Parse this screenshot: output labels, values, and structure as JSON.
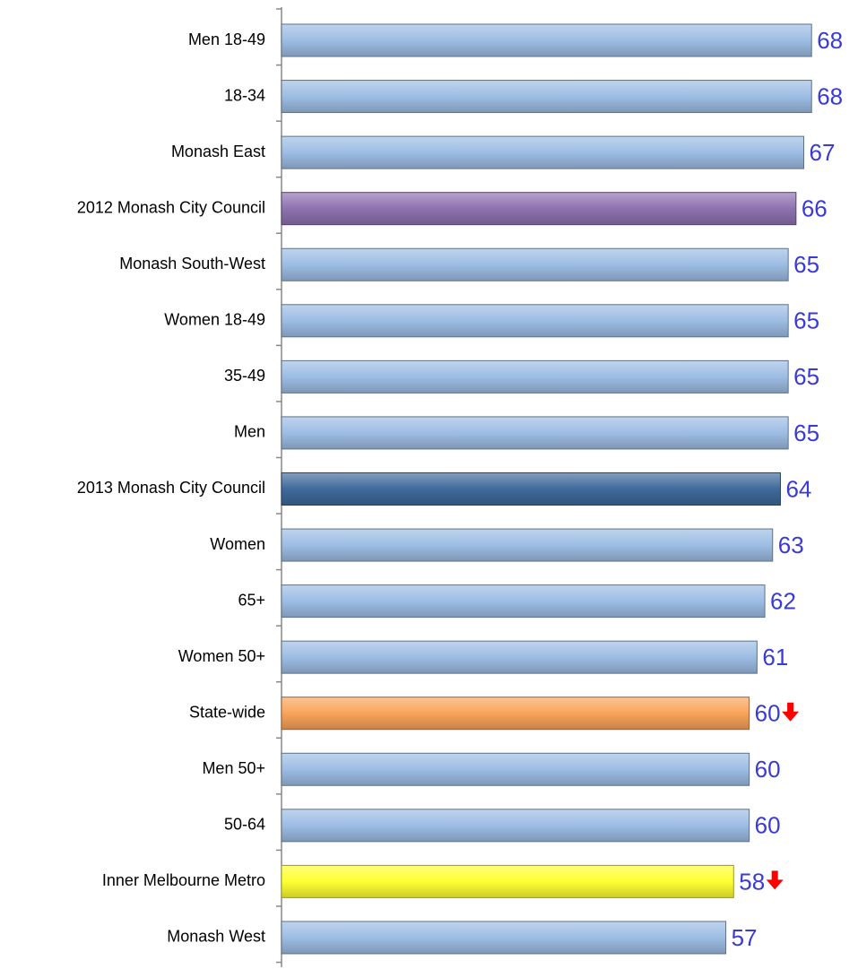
{
  "chart_data": {
    "type": "bar",
    "orientation": "horizontal",
    "categories": [
      "Men 18-49",
      "18-34",
      "Monash East",
      "2012 Monash City Council",
      "Monash South-West",
      "Women 18-49",
      "35-49",
      "Men",
      "2013 Monash City Council",
      "Women",
      "65+",
      "Women 50+",
      "State-wide",
      "Men 50+",
      "50-64",
      "Inner Melbourne Metro",
      "Monash West"
    ],
    "values": [
      68,
      68,
      67,
      66,
      65,
      65,
      65,
      65,
      64,
      63,
      62,
      61,
      60,
      60,
      60,
      58,
      57
    ],
    "colors": [
      "#9dbde4",
      "#9dbde4",
      "#9dbde4",
      "#8e72b0",
      "#9dbde4",
      "#9dbde4",
      "#9dbde4",
      "#9dbde4",
      "#3f6a9b",
      "#9dbde4",
      "#9dbde4",
      "#9dbde4",
      "#f9a45a",
      "#9dbde4",
      "#9dbde4",
      "#ffff33",
      "#9dbde4"
    ],
    "markers": [
      null,
      null,
      null,
      null,
      null,
      null,
      null,
      null,
      null,
      null,
      null,
      null,
      "down",
      null,
      null,
      "down",
      null
    ],
    "marker_color": "#ff0000",
    "xlim": [
      0,
      72
    ]
  }
}
